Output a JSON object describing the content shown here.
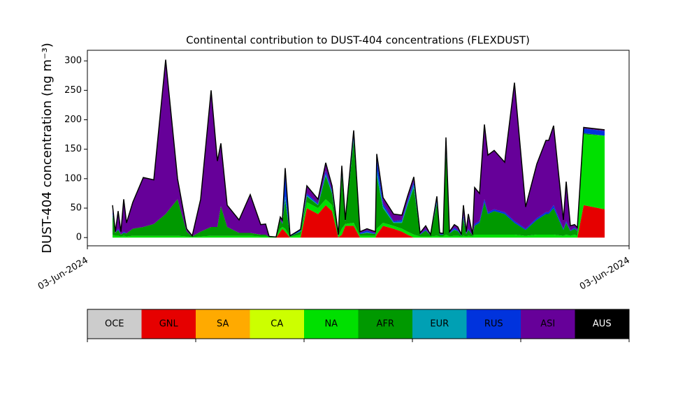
{
  "chart_data": {
    "type": "stacked_area",
    "title": "Continental contribution to DUST-404 concentrations (FLEXDUST)",
    "y_label": "DUST-404 concentration (ng m⁻³)",
    "xlim": [
      0,
      775
    ],
    "xticks": [
      {
        "value": 0,
        "label": "03-Jun-2024"
      },
      {
        "value": 775,
        "label": "03-Jun-2024"
      }
    ],
    "ylim": [
      -14,
      318
    ],
    "yticks": [
      0,
      50,
      100,
      150,
      200,
      250,
      300
    ],
    "x": [
      36,
      40,
      44,
      48,
      52,
      56,
      65,
      80,
      95,
      112,
      129,
      142,
      150,
      162,
      177,
      186,
      191,
      200,
      217,
      233,
      248,
      255,
      260,
      270,
      276,
      279,
      283,
      290,
      297,
      305,
      314,
      330,
      341,
      350,
      359,
      364,
      369,
      381,
      390,
      400,
      412,
      414,
      423,
      438,
      450,
      458,
      467,
      476,
      484,
      491,
      500,
      504,
      509,
      513,
      518,
      525,
      530,
      535,
      538,
      542,
      545,
      551,
      554,
      561,
      568,
      573,
      582,
      597,
      611,
      627,
      643,
      656,
      660,
      667,
      681,
      685,
      691,
      697,
      701,
      710,
      740
    ],
    "series": [
      {
        "name": "OCE",
        "color": "#cccccc",
        "values": [
          0,
          0,
          0,
          0,
          0,
          0,
          0,
          0,
          0,
          0,
          0,
          0,
          0,
          0,
          0,
          0,
          0,
          0,
          0,
          0,
          0,
          0,
          0,
          0,
          0,
          0,
          0,
          0,
          0,
          0,
          0,
          0,
          0,
          0,
          0,
          0,
          0,
          0,
          0,
          0,
          0,
          0,
          0,
          0,
          0,
          0,
          0,
          0,
          0,
          0,
          0,
          0,
          0,
          0,
          0,
          0,
          0,
          0,
          0,
          0,
          0,
          0,
          0,
          0,
          0,
          0,
          0,
          0,
          0,
          0,
          0,
          0,
          0,
          0,
          0,
          0,
          0,
          0,
          0,
          0,
          0
        ]
      },
      {
        "name": "GNL",
        "color": "#e60000",
        "values": [
          0,
          0,
          0,
          0,
          0,
          0,
          0,
          0,
          0,
          0,
          0,
          0,
          0,
          0,
          0,
          0,
          0,
          0,
          0,
          0,
          0,
          0,
          0,
          0,
          10,
          15,
          10,
          0,
          0,
          0,
          50,
          40,
          55,
          45,
          0,
          5,
          20,
          20,
          0,
          0,
          0,
          5,
          20,
          15,
          10,
          5,
          0,
          0,
          0,
          0,
          0,
          0,
          0,
          0,
          0,
          0,
          0,
          0,
          0,
          0,
          0,
          0,
          0,
          0,
          0,
          0,
          0,
          0,
          0,
          0,
          0,
          0,
          0,
          0,
          0,
          0,
          0,
          0,
          0,
          55,
          48
        ]
      },
      {
        "name": "SA",
        "color": "#ffaa00",
        "values": [
          0,
          0,
          0,
          0,
          0,
          0,
          0,
          0,
          0,
          0,
          0,
          0,
          0,
          0,
          0,
          0,
          0,
          0,
          0,
          0,
          0,
          0,
          0,
          0,
          0,
          0,
          0,
          0,
          0,
          0,
          0,
          0,
          0,
          0,
          0,
          0,
          0,
          0,
          0,
          0,
          0,
          0,
          0,
          0,
          0,
          0,
          0,
          0,
          0,
          0,
          0,
          0,
          0,
          0,
          0,
          0,
          0,
          0,
          0,
          0,
          0,
          0,
          0,
          0,
          0,
          0,
          0,
          0,
          0,
          0,
          0,
          0,
          0,
          0,
          0,
          0,
          0,
          0,
          0,
          0,
          0
        ]
      },
      {
        "name": "CA",
        "color": "#ccff00",
        "values": [
          0,
          0,
          0,
          0,
          0,
          0,
          0,
          0,
          0,
          0,
          0,
          0,
          0,
          0,
          0,
          0,
          0,
          0,
          0,
          0,
          0,
          0,
          0,
          0,
          0,
          0,
          0,
          0,
          0,
          0,
          0,
          0,
          0,
          0,
          0,
          0,
          0,
          0,
          0,
          0,
          0,
          0,
          0,
          0,
          0,
          0,
          0,
          0,
          0,
          0,
          0,
          0,
          0,
          0,
          0,
          0,
          0,
          0,
          0,
          0,
          0,
          0,
          0,
          0,
          0,
          0,
          0,
          0,
          0,
          0,
          0,
          0,
          0,
          0,
          0,
          0,
          0,
          0,
          0,
          0,
          0
        ]
      },
      {
        "name": "NA",
        "color": "#00e000",
        "values": [
          5,
          3,
          3,
          2,
          3,
          2,
          3,
          3,
          3,
          3,
          3,
          2,
          1,
          2,
          3,
          3,
          3,
          3,
          3,
          3,
          2,
          2,
          1,
          1,
          5,
          3,
          5,
          1,
          3,
          5,
          10,
          10,
          10,
          10,
          2,
          10,
          3,
          5,
          3,
          3,
          3,
          10,
          5,
          5,
          5,
          5,
          5,
          2,
          2,
          2,
          3,
          2,
          2,
          5,
          2,
          3,
          3,
          2,
          3,
          2,
          3,
          2,
          5,
          5,
          5,
          5,
          5,
          5,
          5,
          3,
          5,
          5,
          5,
          5,
          3,
          5,
          3,
          5,
          3,
          120,
          125
        ]
      },
      {
        "name": "AFR",
        "color": "#009900",
        "values": [
          35,
          5,
          10,
          3,
          5,
          5,
          12,
          15,
          20,
          37,
          62,
          8,
          1,
          8,
          15,
          15,
          50,
          15,
          5,
          5,
          3,
          3,
          0,
          0,
          15,
          5,
          50,
          1,
          3,
          5,
          10,
          5,
          40,
          20,
          2,
          90,
          5,
          140,
          3,
          5,
          3,
          90,
          25,
          5,
          10,
          45,
          80,
          3,
          10,
          2,
          55,
          3,
          3,
          140,
          5,
          10,
          8,
          1,
          30,
          4,
          10,
          2,
          15,
          20,
          55,
          35,
          40,
          35,
          20,
          10,
          25,
          35,
          35,
          45,
          10,
          20,
          8,
          10,
          8,
          2,
          0
        ]
      },
      {
        "name": "EUR",
        "color": "#00a0b4",
        "values": [
          0,
          0,
          0,
          0,
          0,
          0,
          0,
          0,
          0,
          0,
          0,
          0,
          0,
          0,
          0,
          0,
          0,
          0,
          0,
          0,
          0,
          0,
          0,
          0,
          0,
          0,
          5,
          0,
          0,
          1,
          2,
          1,
          3,
          2,
          0,
          5,
          0,
          3,
          0,
          1,
          0,
          10,
          3,
          1,
          2,
          3,
          5,
          0,
          0,
          0,
          2,
          0,
          0,
          5,
          0,
          1,
          0,
          0,
          0,
          0,
          0,
          0,
          0,
          0,
          0,
          0,
          0,
          0,
          0,
          0,
          0,
          0,
          0,
          0,
          0,
          0,
          0,
          0,
          0,
          0,
          0
        ]
      },
      {
        "name": "RUS",
        "color": "#0033dd",
        "values": [
          5,
          0,
          2,
          0,
          2,
          0,
          0,
          0,
          0,
          0,
          0,
          0,
          0,
          0,
          0,
          0,
          0,
          0,
          0,
          0,
          0,
          0,
          0,
          0,
          0,
          2,
          40,
          1,
          2,
          2,
          3,
          2,
          5,
          3,
          1,
          10,
          1,
          10,
          2,
          3,
          1,
          20,
          5,
          2,
          3,
          4,
          5,
          1,
          2,
          0,
          5,
          1,
          1,
          15,
          1,
          3,
          2,
          1,
          5,
          1,
          2,
          0,
          3,
          3,
          5,
          3,
          3,
          3,
          3,
          2,
          3,
          3,
          3,
          5,
          2,
          3,
          1,
          2,
          1,
          8,
          8
        ]
      },
      {
        "name": "ASI",
        "color": "#660099",
        "values": [
          10,
          2,
          30,
          5,
          55,
          18,
          45,
          84,
          75,
          262,
          35,
          5,
          1,
          55,
          232,
          112,
          107,
          37,
          22,
          65,
          17,
          18,
          1,
          0,
          5,
          5,
          8,
          0,
          0,
          1,
          13,
          7,
          14,
          8,
          0,
          2,
          1,
          4,
          2,
          3,
          3,
          7,
          10,
          12,
          8,
          8,
          8,
          2,
          6,
          1,
          5,
          2,
          1,
          5,
          2,
          5,
          5,
          1,
          17,
          3,
          25,
          1,
          62,
          47,
          127,
          97,
          100,
          85,
          235,
          37,
          92,
          122,
          122,
          135,
          15,
          67,
          8,
          5,
          5,
          2,
          2
        ]
      },
      {
        "name": "AUS",
        "color": "#000000",
        "values": [
          0,
          0,
          0,
          0,
          0,
          0,
          0,
          0,
          0,
          0,
          0,
          0,
          0,
          0,
          0,
          0,
          0,
          0,
          0,
          0,
          0,
          0,
          0,
          0,
          0,
          0,
          0,
          0,
          0,
          0,
          0,
          0,
          0,
          0,
          0,
          0,
          0,
          0,
          0,
          0,
          0,
          0,
          0,
          0,
          0,
          0,
          0,
          0,
          0,
          0,
          0,
          0,
          0,
          0,
          0,
          0,
          0,
          0,
          0,
          0,
          0,
          0,
          0,
          0,
          0,
          0,
          0,
          0,
          0,
          0,
          0,
          0,
          0,
          0,
          0,
          0,
          0,
          0,
          0,
          0,
          0
        ]
      }
    ]
  }
}
